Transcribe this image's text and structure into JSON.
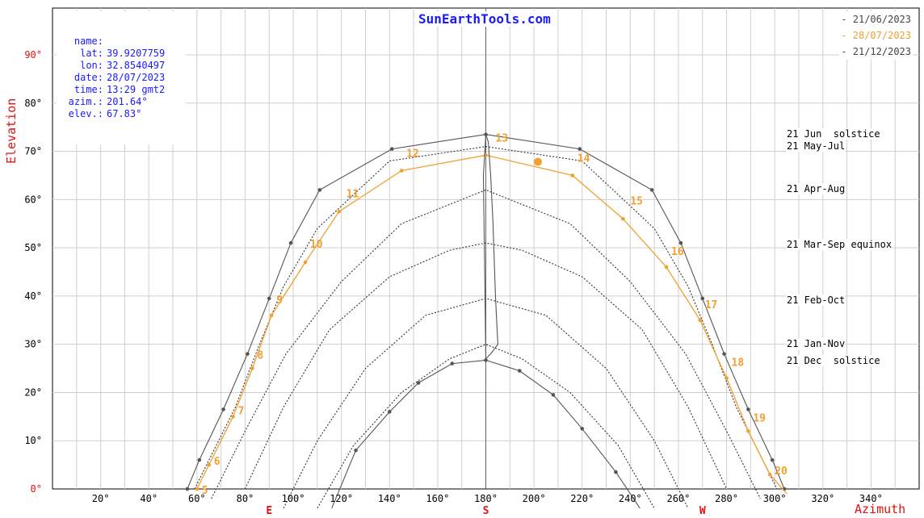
{
  "title": "SunEarthTools.com",
  "info": [
    {
      "key": "name:",
      "value": ""
    },
    {
      "key": "lat:",
      "value": "39.9207759"
    },
    {
      "key": "lon:",
      "value": "32.8540497"
    },
    {
      "key": "date:",
      "value": "28/07/2023"
    },
    {
      "key": "time:",
      "value": "13:29 gmt2"
    },
    {
      "key": "azim.:",
      "value": "201.64°"
    },
    {
      "key": "elev.:",
      "value": "67.83°"
    }
  ],
  "legend": [
    {
      "label": "- 21/06/2023",
      "color": "#444444"
    },
    {
      "label": "- 28/07/2023",
      "color": "#f0a030"
    },
    {
      "label": "- 21/12/2023",
      "color": "#444444"
    }
  ],
  "season_labels": [
    {
      "text": "21 Jun  solstice",
      "elev": 73.5
    },
    {
      "text": "21 May-Jul",
      "elev": 71.0
    },
    {
      "text": "21 Apr-Aug",
      "elev": 62.0
    },
    {
      "text": "21 Mar-Sep equinox",
      "elev": 50.5
    },
    {
      "text": "21 Feb-Oct",
      "elev": 39.0
    },
    {
      "text": "21 Jan-Nov",
      "elev": 30.0
    },
    {
      "text": "21 Dec  solstice",
      "elev": 26.5
    }
  ],
  "colors": {
    "grid": "#cfcfcf",
    "axis": "#000000",
    "red": "#e01010",
    "blue": "#1a1aff",
    "orange": "#f0a030",
    "dark": "#555555"
  },
  "chart_data": {
    "type": "line",
    "xlabel": "Azimuth",
    "ylabel": "Elevation",
    "xlim": [
      0,
      360
    ],
    "ylim": [
      0,
      90
    ],
    "x_ticks": [
      "20°",
      "40°",
      "60°",
      "80°",
      "100°",
      "120°",
      "140°",
      "160°",
      "180°",
      "200°",
      "220°",
      "240°",
      "260°",
      "280°",
      "300°",
      "320°",
      "340°"
    ],
    "x_tick_values": [
      20,
      40,
      60,
      80,
      100,
      120,
      140,
      160,
      180,
      200,
      220,
      240,
      260,
      280,
      300,
      320,
      340
    ],
    "y_ticks": [
      "0°",
      "10°",
      "20°",
      "30°",
      "40°",
      "50°",
      "60°",
      "70°",
      "80°",
      "90°"
    ],
    "y_tick_values": [
      0,
      10,
      20,
      30,
      40,
      50,
      60,
      70,
      80,
      90
    ],
    "compass": [
      {
        "label": "E",
        "x": 90
      },
      {
        "label": "S",
        "x": 180
      },
      {
        "label": "W",
        "x": 270
      }
    ],
    "current_position": {
      "azimuth": 201.64,
      "elevation": 67.83
    },
    "series": [
      {
        "name": "21/06/2023",
        "style": "solid",
        "color": "#555555",
        "x": [
          56,
          61,
          71,
          81,
          90,
          99,
          111,
          141,
          180,
          219,
          249,
          261,
          270,
          279,
          289,
          299,
          304
        ],
        "y": [
          0,
          6,
          16.5,
          28,
          39.5,
          51,
          62,
          70.5,
          73.5,
          70.5,
          62,
          51,
          39.5,
          28,
          16.5,
          6,
          0
        ],
        "markers": true
      },
      {
        "name": "21 May-Jul",
        "style": "dotted",
        "color": "#333333",
        "x": [
          59,
          66,
          76,
          86,
          96,
          110,
          140,
          180,
          220,
          250,
          264,
          274,
          284,
          294,
          301
        ],
        "y": [
          0,
          7,
          17,
          30,
          42,
          54,
          68,
          71,
          68,
          54,
          42,
          30,
          17,
          7,
          0
        ],
        "markers": false
      },
      {
        "name": "28/07/2023",
        "style": "solid",
        "color": "#f0a030",
        "x": [
          60,
          65,
          75,
          83,
          91,
          105,
          119,
          145,
          180,
          216,
          237,
          255,
          269,
          280,
          289,
          298,
          305
        ],
        "y": [
          0,
          5,
          15,
          25,
          36,
          47,
          57.5,
          66,
          69.2,
          65,
          56,
          46,
          35,
          23,
          12,
          3,
          -1
        ],
        "markers": true,
        "hour_labels": [
          {
            "text": "5",
            "x": 62,
            "y": -1
          },
          {
            "text": "6",
            "x": 67,
            "y": 5
          },
          {
            "text": "7",
            "x": 77,
            "y": 15.5
          },
          {
            "text": "8",
            "x": 85,
            "y": 27
          },
          {
            "text": "9",
            "x": 93,
            "y": 38.5
          },
          {
            "text": "10",
            "x": 107,
            "y": 50
          },
          {
            "text": "11",
            "x": 122,
            "y": 60.5
          },
          {
            "text": "12",
            "x": 147,
            "y": 68.8
          },
          {
            "text": "13",
            "x": 184,
            "y": 72
          },
          {
            "text": "14",
            "x": 218,
            "y": 67.8
          },
          {
            "text": "15",
            "x": 240,
            "y": 59
          },
          {
            "text": "16",
            "x": 257,
            "y": 48.5
          },
          {
            "text": "17",
            "x": 271,
            "y": 37.5
          },
          {
            "text": "18",
            "x": 282,
            "y": 25.5
          },
          {
            "text": "19",
            "x": 291,
            "y": 14
          },
          {
            "text": "20",
            "x": 300,
            "y": 3
          }
        ]
      },
      {
        "name": "21 Apr-Aug",
        "style": "dotted",
        "color": "#333333",
        "x": [
          66,
          80,
          97,
          120,
          145,
          180,
          215,
          240,
          263,
          280,
          294
        ],
        "y": [
          -2,
          12,
          28,
          43,
          55,
          62,
          55,
          43,
          28,
          12,
          -2
        ],
        "markers": false
      },
      {
        "name": "21 Mar-Sep equinox",
        "style": "dotted",
        "color": "#333333",
        "x": [
          80,
          96,
          115,
          140,
          165,
          180,
          195,
          220,
          245,
          264,
          280
        ],
        "y": [
          0,
          17,
          33,
          44,
          49.5,
          51,
          49.5,
          44,
          33,
          17,
          0
        ],
        "markers": false
      },
      {
        "name": "21 Feb-Oct",
        "style": "dotted",
        "color": "#333333",
        "x": [
          96,
          110,
          130,
          155,
          180,
          205,
          230,
          250,
          264
        ],
        "y": [
          -4,
          10,
          25,
          36,
          39.5,
          36,
          25,
          10,
          -4
        ],
        "markers": false
      },
      {
        "name": "21 Jan-Nov",
        "style": "dotted",
        "color": "#333333",
        "x": [
          110,
          125,
          145,
          165,
          180,
          195,
          215,
          235,
          250
        ],
        "y": [
          -4,
          9,
          20,
          27,
          30,
          27,
          20,
          9,
          -4
        ],
        "markers": false
      },
      {
        "name": "21/12/2023",
        "style": "solid",
        "color": "#555555",
        "x": [
          116,
          126,
          140,
          152,
          166,
          180,
          194,
          208,
          220,
          234,
          244
        ],
        "y": [
          -4,
          8,
          16,
          22,
          26,
          26.7,
          24.5,
          19.5,
          12.5,
          3.5,
          -4
        ],
        "markers": true
      },
      {
        "name": "analemma 13h",
        "style": "solid",
        "color": "#555555",
        "x": [
          180,
          182,
          185,
          184,
          183,
          182,
          181,
          180,
          179,
          180
        ],
        "y": [
          27,
          28,
          30,
          40,
          55,
          65,
          72,
          73.5,
          65,
          27
        ],
        "markers": false
      }
    ]
  }
}
